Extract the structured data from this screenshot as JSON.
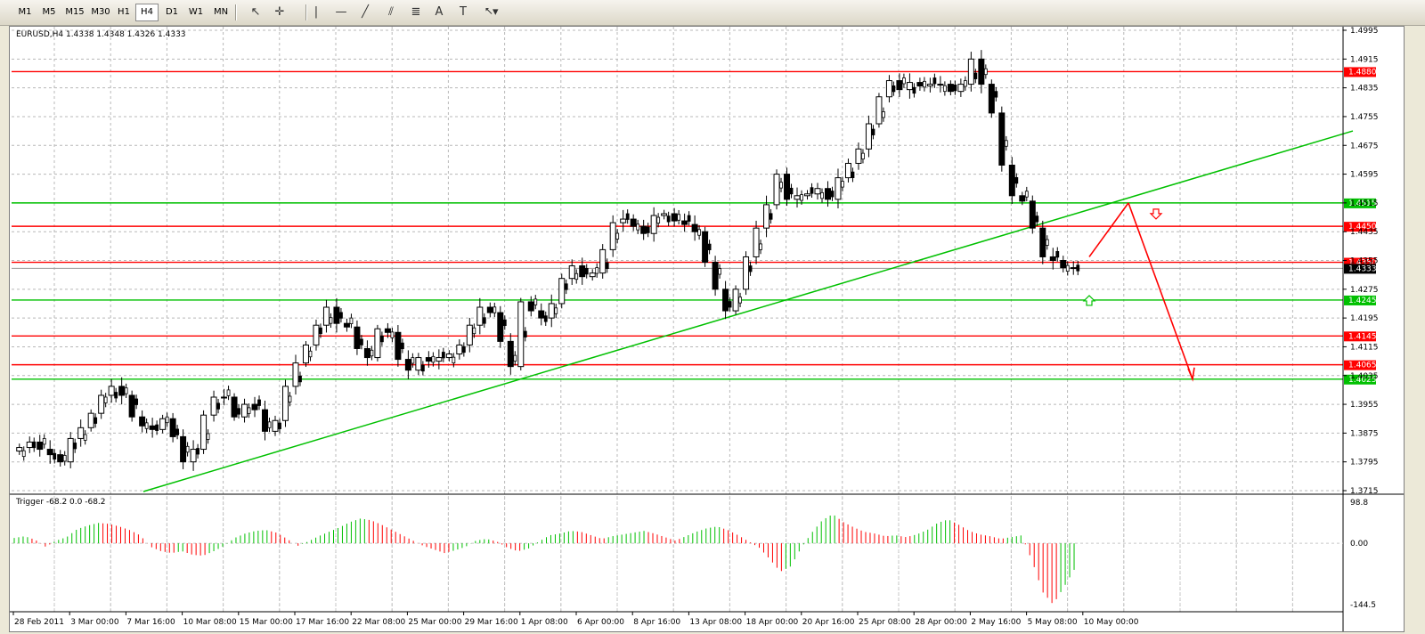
{
  "toolbar": {
    "timeframes": [
      "M1",
      "M5",
      "M15",
      "M30",
      "H1",
      "H4",
      "D1",
      "W1",
      "MN"
    ],
    "active_timeframe": "H4",
    "tools": [
      "cursor-icon",
      "crosshair-icon",
      "vertical-line-icon",
      "horizontal-line-icon",
      "trendline-icon",
      "equidistant-channel-icon",
      "fibonacci-icon",
      "text-icon",
      "text-label-icon",
      "arrow-shapes-icon"
    ]
  },
  "chart": {
    "symbol_info": "EURUSD,H4  1.4338 1.4348 1.4326 1.4333",
    "price_axis": [
      "1.4995",
      "1.4915",
      "1.4835",
      "1.4755",
      "1.4675",
      "1.4595",
      "1.4515",
      "1.4435",
      "1.4355",
      "1.4275",
      "1.4195",
      "1.4115",
      "1.4035",
      "1.3955",
      "1.3875",
      "1.3795",
      "1.3715"
    ],
    "levels": [
      {
        "price": 1.488,
        "label": "1.4880",
        "color": "#ff0000"
      },
      {
        "price": 1.4515,
        "label": "1.4515",
        "color": "#00c000"
      },
      {
        "price": 1.445,
        "label": "1.4450",
        "color": "#ff0000"
      },
      {
        "price": 1.435,
        "label": "1.4350",
        "color": "#ff0000"
      },
      {
        "price": 1.4245,
        "label": "1.4245",
        "color": "#00c000"
      },
      {
        "price": 1.4145,
        "label": "1.4145",
        "color": "#ff0000"
      },
      {
        "price": 1.4065,
        "label": "1.4065",
        "color": "#ff0000"
      },
      {
        "price": 1.4025,
        "label": "1.4025",
        "color": "#00c000"
      }
    ],
    "current_price": "1.4333",
    "time_labels": [
      "28 Feb 2011",
      "3 Mar 00:00",
      "7 Mar 16:00",
      "10 Mar 08:00",
      "15 Mar 00:00",
      "17 Mar 16:00",
      "22 Mar 08:00",
      "25 Mar 00:00",
      "29 Mar 16:00",
      "1 Apr 08:00",
      "6 Apr 00:00",
      "8 Apr 16:00",
      "13 Apr 08:00",
      "18 Apr 00:00",
      "20 Apr 16:00",
      "25 Apr 08:00",
      "28 Apr 00:00",
      "2 May 16:00",
      "5 May 08:00",
      "10 May 00:00"
    ],
    "close_series": [
      1.3835,
      1.385,
      1.383,
      1.3815,
      1.3795,
      1.386,
      1.389,
      1.393,
      1.398,
      1.4005,
      1.398,
      1.392,
      1.3895,
      1.3885,
      1.3915,
      1.3865,
      1.3795,
      1.383,
      1.3925,
      1.3975,
      1.3975,
      1.392,
      1.3955,
      1.394,
      1.388,
      1.391,
      1.4005,
      1.407,
      1.412,
      1.4175,
      1.4225,
      1.418,
      1.417,
      1.411,
      1.4085,
      1.4165,
      1.4155,
      1.408,
      1.405,
      1.4085,
      1.4075,
      1.4085,
      1.4095,
      1.412,
      1.4175,
      1.4225,
      1.421,
      1.413,
      1.406,
      1.424,
      1.4215,
      1.4195,
      1.4235,
      1.4305,
      1.434,
      1.431,
      1.432,
      1.4385,
      1.446,
      1.447,
      1.445,
      1.443,
      1.448,
      1.4485,
      1.4465,
      1.4455,
      1.4435,
      1.435,
      1.4275,
      1.4215,
      1.4275,
      1.4365,
      1.4445,
      1.451,
      1.4595,
      1.4525,
      1.4535,
      1.454,
      1.4555,
      1.4525,
      1.4585,
      1.4625,
      1.4665,
      1.4735,
      1.481,
      1.4855,
      1.483,
      1.485,
      1.484,
      1.4845,
      1.4845,
      1.4825,
      1.4845,
      1.4915,
      1.4845,
      1.4765,
      1.462,
      1.4535,
      1.452,
      1.4445,
      1.4365,
      1.4355,
      1.4335,
      1.4333
    ],
    "trendline_label": "",
    "projection": {
      "up_from": [
        1.4365,
        "8 May 04:00"
      ],
      "peak": [
        1.4515,
        "10 May 20:00"
      ],
      "target": [
        1.4025,
        "12 May 12:00"
      ]
    }
  },
  "indicator": {
    "label": "Trigger -68.2 0.0 -68.2",
    "axis": [
      "98.8",
      "0.00",
      "-144.5"
    ],
    "max": 98.8,
    "min": -144.5,
    "histogram": [
      12,
      16,
      8,
      -8,
      6,
      14,
      32,
      40,
      46,
      44,
      38,
      30,
      18,
      -8,
      -18,
      -22,
      -18,
      -26,
      -28,
      -18,
      -6,
      12,
      22,
      28,
      30,
      24,
      10,
      -6,
      4,
      16,
      26,
      36,
      48,
      56,
      52,
      42,
      30,
      18,
      6,
      -6,
      -14,
      -22,
      -16,
      -8,
      6,
      10,
      4,
      -10,
      -18,
      -12,
      4,
      18,
      22,
      28,
      26,
      18,
      10,
      16,
      20,
      24,
      28,
      22,
      14,
      6,
      16,
      26,
      34,
      38,
      30,
      18,
      4,
      -10,
      -36,
      -64,
      -52,
      -10,
      24,
      52,
      66,
      48,
      36,
      26,
      22,
      16,
      18,
      14,
      20,
      30,
      46,
      54,
      42,
      28,
      20,
      16,
      10,
      14,
      18,
      -40,
      -110,
      -138,
      -100,
      -60
    ]
  }
}
